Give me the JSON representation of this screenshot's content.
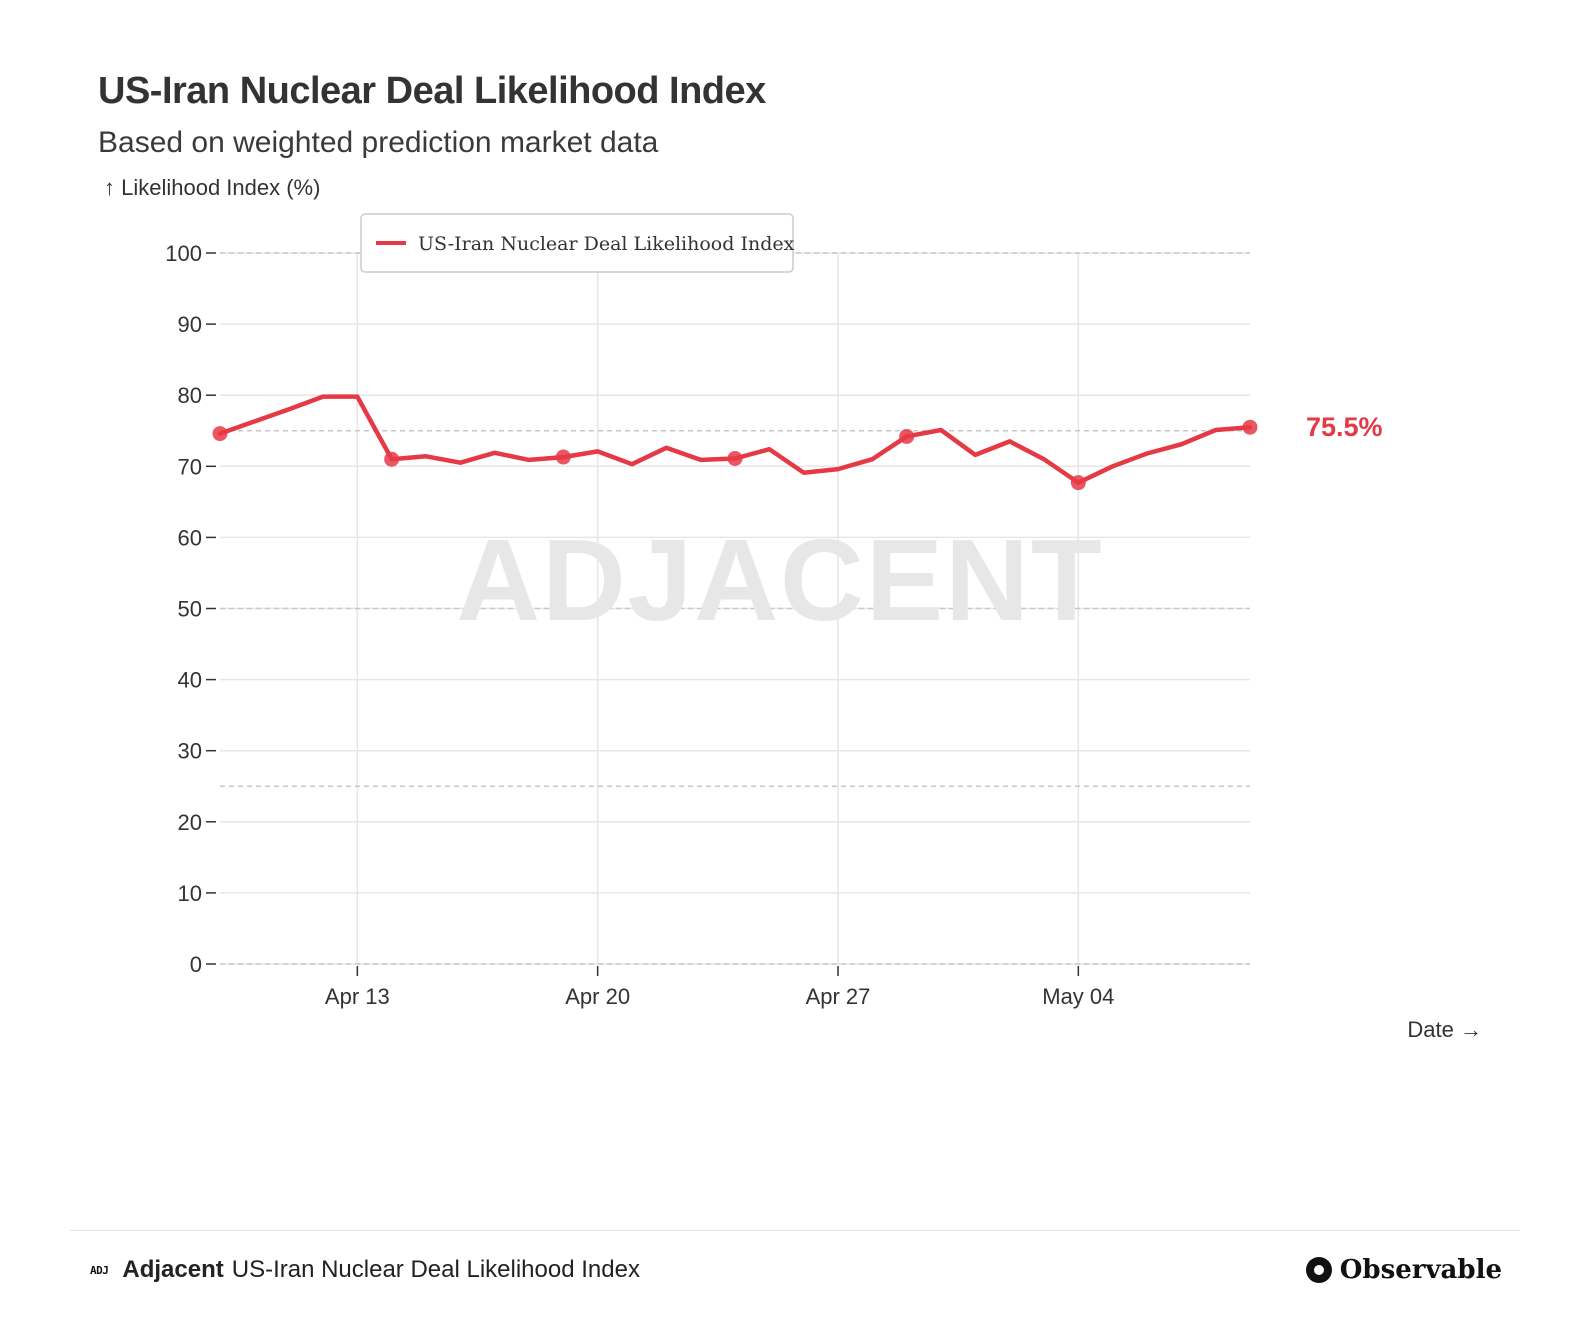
{
  "header": {
    "title": "US-Iran Nuclear Deal Likelihood Index",
    "subtitle": "Based on weighted prediction market data"
  },
  "chart_data": {
    "type": "line",
    "title": "US-Iran Nuclear Deal Likelihood Index",
    "subtitle": "Based on weighted prediction market data",
    "ylabel": "↑ Likelihood Index (%)",
    "xlabel": "Date →",
    "ylim": [
      0,
      100
    ],
    "yticks": [
      0,
      10,
      20,
      30,
      40,
      50,
      60,
      70,
      80,
      90,
      100
    ],
    "reference_lines": [
      0,
      25,
      50,
      75,
      100
    ],
    "x_start": "Apr 09",
    "x_end": "May 09",
    "x_ticks": [
      {
        "label": "Apr 13",
        "day": 4
      },
      {
        "label": "Apr 20",
        "day": 11
      },
      {
        "label": "Apr 27",
        "day": 18
      },
      {
        "label": "May 04",
        "day": 25
      }
    ],
    "legend": "US-Iran Nuclear Deal Likelihood Index",
    "legend_position": "top-left",
    "watermark": "ADJACENT",
    "color": "#e63946",
    "series": [
      {
        "name": "US-Iran Nuclear Deal Likelihood Index",
        "x": [
          0,
          1,
          2,
          3,
          4,
          5,
          6,
          7,
          8,
          9,
          10,
          11,
          12,
          13,
          14,
          15,
          16,
          17,
          18,
          19,
          20,
          21,
          22,
          23,
          24,
          25,
          26,
          27,
          28,
          29,
          30
        ],
        "values": [
          74.6,
          76.3,
          78.0,
          79.8,
          79.8,
          71.0,
          71.4,
          70.5,
          71.9,
          70.9,
          71.3,
          72.1,
          70.3,
          72.6,
          70.9,
          71.1,
          72.4,
          69.1,
          69.6,
          71.0,
          74.2,
          75.1,
          71.6,
          73.5,
          71.0,
          67.7,
          70.0,
          71.8,
          73.1,
          75.1,
          75.5
        ],
        "marked_points": [
          0,
          5,
          10,
          15,
          20,
          25,
          30
        ]
      }
    ],
    "last_value_label": "75.5%"
  },
  "footer": {
    "badge": "ADJ",
    "brand": "Adjacent",
    "caption": "US-Iran Nuclear Deal Likelihood Index",
    "platform": "Observable"
  }
}
